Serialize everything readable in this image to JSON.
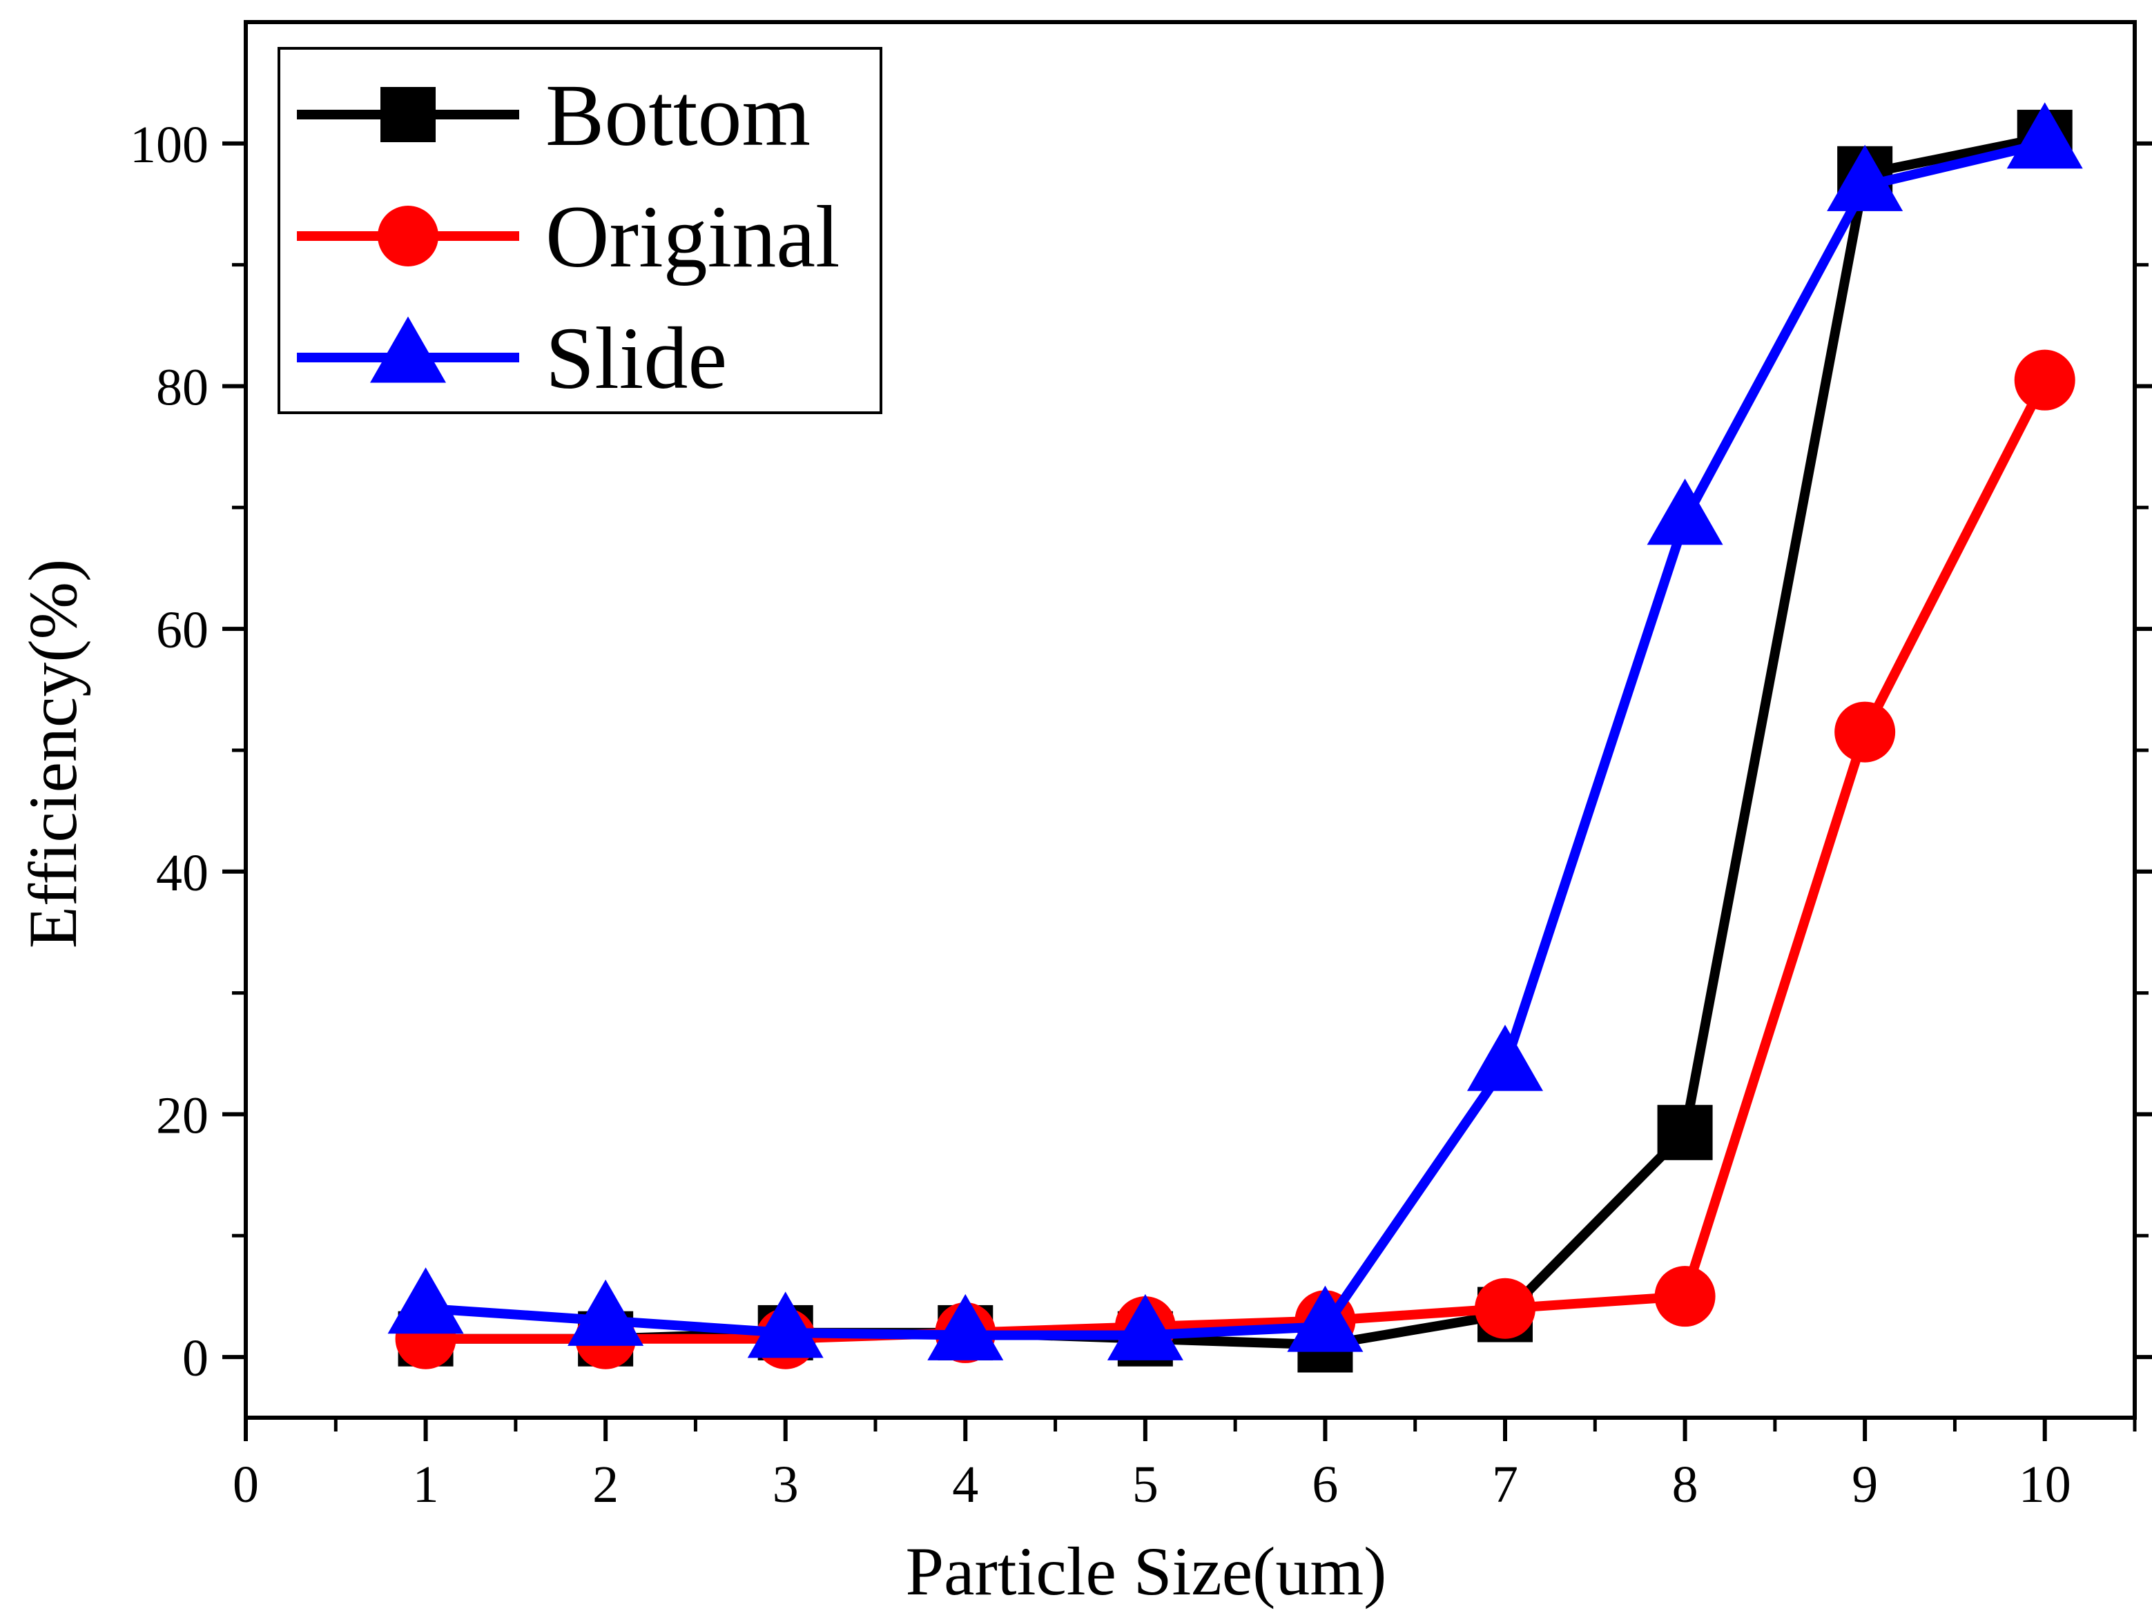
{
  "chart_data": {
    "type": "line",
    "title": "",
    "xlabel": "Particle Size(um)",
    "ylabel": "Efficiency(%)",
    "xlim": [
      0,
      10.5
    ],
    "ylim": [
      -5,
      110
    ],
    "xticks": [
      0,
      1,
      2,
      3,
      4,
      5,
      6,
      7,
      8,
      9,
      10
    ],
    "yticks": [
      0,
      20,
      40,
      60,
      80,
      100
    ],
    "x": [
      1,
      2,
      3,
      4,
      5,
      6,
      7,
      8,
      9,
      10
    ],
    "legend_position": "top-left",
    "series": [
      {
        "name": "Bottom",
        "color": "#000000",
        "marker": "square",
        "values": [
          1.5,
          1.5,
          2.0,
          2.0,
          1.5,
          1.0,
          3.5,
          18.5,
          97.5,
          100.5
        ]
      },
      {
        "name": "Original",
        "color": "#ff0000",
        "marker": "circle",
        "values": [
          1.5,
          1.5,
          1.5,
          2.0,
          2.5,
          3.0,
          4.0,
          5.0,
          51.5,
          80.5
        ]
      },
      {
        "name": "Slide",
        "color": "#0000ff",
        "marker": "triangle",
        "values": [
          4.0,
          3.0,
          2.0,
          1.8,
          1.8,
          2.5,
          24.0,
          69.0,
          96.5,
          100.0
        ]
      }
    ]
  }
}
